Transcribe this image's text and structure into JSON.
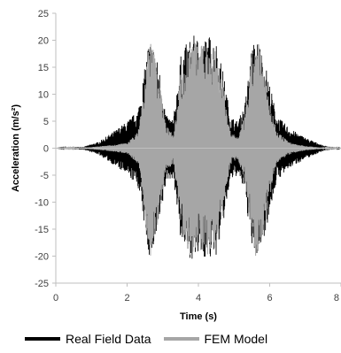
{
  "chart_data": {
    "type": "line",
    "title": "",
    "xlabel": "Time (s)",
    "ylabel": "Acceleration (m/s²)",
    "xlim": [
      0,
      8
    ],
    "ylim": [
      -25,
      25
    ],
    "x_ticks": [
      0,
      2,
      4,
      6,
      8
    ],
    "x_tick_labels": [
      "0",
      "2",
      "4",
      "6",
      "8"
    ],
    "y_ticks": [
      -25,
      -20,
      -15,
      -10,
      -5,
      0,
      5,
      10,
      15,
      20,
      25
    ],
    "y_tick_labels": [
      "-25",
      "-20",
      "-15",
      "-10",
      "-5",
      "0",
      "5",
      "10",
      "15",
      "20",
      "25"
    ],
    "grid": false,
    "legend_position": "bottom",
    "series": [
      {
        "name": "Real Field Data",
        "color": "#000000",
        "envelope_time_s": [
          0.0,
          0.8,
          1.2,
          1.6,
          2.0,
          2.3,
          2.5,
          2.6,
          2.7,
          2.9,
          3.1,
          3.3,
          3.5,
          3.7,
          3.9,
          4.1,
          4.3,
          4.5,
          4.7,
          4.9,
          5.1,
          5.3,
          5.5,
          5.6,
          5.7,
          5.9,
          6.2,
          6.6,
          7.0,
          7.5,
          8.0
        ],
        "envelope_amplitude": [
          0.0,
          0.3,
          1.2,
          3.0,
          5.0,
          7.0,
          15.0,
          20.0,
          20.0,
          15.0,
          6.0,
          5.5,
          17.0,
          20.0,
          21.0,
          20.0,
          21.0,
          20.0,
          14.0,
          6.0,
          5.0,
          8.0,
          19.0,
          20.0,
          20.0,
          15.0,
          6.0,
          3.5,
          2.0,
          0.5,
          0.0
        ]
      },
      {
        "name": "FEM Model",
        "color": "#a6a6a6",
        "envelope_time_s": [
          0.0,
          1.0,
          1.6,
          2.0,
          2.3,
          2.5,
          2.6,
          2.7,
          2.9,
          3.1,
          3.3,
          3.5,
          3.7,
          3.9,
          4.1,
          4.3,
          4.5,
          4.7,
          4.9,
          5.1,
          5.3,
          5.5,
          5.6,
          5.7,
          5.9,
          6.2,
          6.6,
          7.0,
          7.5,
          8.0
        ],
        "envelope_amplitude": [
          0.0,
          0.2,
          0.6,
          1.0,
          3.0,
          12.0,
          20.0,
          20.0,
          13.0,
          4.0,
          3.0,
          14.0,
          20.0,
          20.0,
          19.0,
          20.0,
          19.0,
          12.0,
          3.0,
          2.0,
          6.0,
          17.0,
          20.0,
          20.0,
          12.0,
          3.0,
          1.0,
          0.4,
          0.1,
          0.0
        ]
      }
    ]
  }
}
